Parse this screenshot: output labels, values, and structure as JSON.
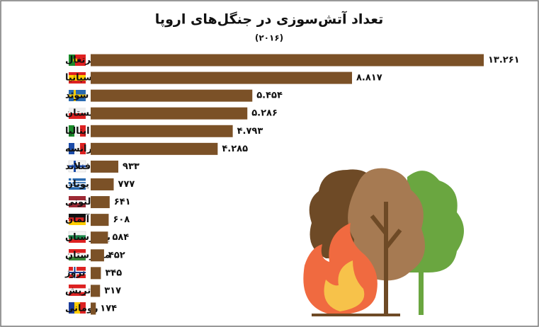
{
  "chart_data": {
    "type": "bar",
    "orientation": "horizontal",
    "title": "تعداد آتش‌سوزی در جنگل‌های اروپا",
    "subtitle": "(۲۰۱۶)",
    "categories": [
      "پرتغال",
      "اسپانیا",
      "سوئد",
      "لهستان",
      "ایتالیا",
      "فرانسه",
      "فنلاند",
      "یونان",
      "لتونی",
      "آلمان",
      "بلغارستان",
      "مجارستان",
      "نروژ",
      "اتریش",
      "رومانی"
    ],
    "values": [
      13261,
      8817,
      5454,
      5286,
      4793,
      4285,
      933,
      777,
      641,
      608,
      584,
      452,
      345,
      317,
      174
    ],
    "value_labels": [
      "۱۳.۲۶۱",
      "۸.۸۱۷",
      "۵.۴۵۴",
      "۵.۲۸۶",
      "۴.۷۹۳",
      "۴.۲۸۵",
      "۹۳۳",
      "۷۷۷",
      "۶۴۱",
      "۶۰۸",
      "۵۸۴",
      "۴۵۲",
      "۳۴۵",
      "۳۱۷",
      "۱۷۴"
    ],
    "color": "#7b5127"
  }
}
